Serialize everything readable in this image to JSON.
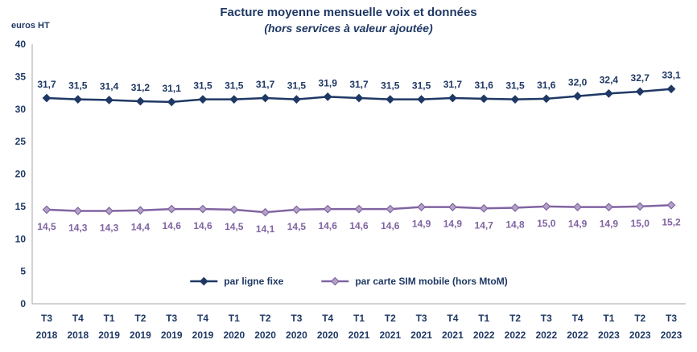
{
  "header": {
    "title": "Facture moyenne mensuelle voix et données",
    "subtitle": "(hors services à valeur ajoutée)"
  },
  "axis": {
    "y_unit_label": "euros HT"
  },
  "colors": {
    "navy": "#1F3864",
    "purple": "#8064A2",
    "purple_marker_fill": "#B3A2C7",
    "axis_line": "#A6A6A6"
  },
  "chart_data": {
    "type": "line",
    "title": "Facture moyenne mensuelle voix et données",
    "subtitle": "(hors services à valeur ajoutée)",
    "ylabel": "euros HT",
    "xlabel": "",
    "ylim": [
      0,
      40
    ],
    "ytick_step": 5,
    "grid": false,
    "legend_position": "bottom-center-inside",
    "categories": [
      [
        "T3",
        "2018"
      ],
      [
        "T4",
        "2018"
      ],
      [
        "T1",
        "2019"
      ],
      [
        "T2",
        "2019"
      ],
      [
        "T3",
        "2019"
      ],
      [
        "T4",
        "2019"
      ],
      [
        "T1",
        "2020"
      ],
      [
        "T2",
        "2020"
      ],
      [
        "T3",
        "2020"
      ],
      [
        "T4",
        "2020"
      ],
      [
        "T1",
        "2021"
      ],
      [
        "T2",
        "2021"
      ],
      [
        "T3",
        "2021"
      ],
      [
        "T4",
        "2021"
      ],
      [
        "T1",
        "2022"
      ],
      [
        "T2",
        "2022"
      ],
      [
        "T3",
        "2022"
      ],
      [
        "T4",
        "2022"
      ],
      [
        "T1",
        "2023"
      ],
      [
        "T2",
        "2023"
      ],
      [
        "T3",
        "2023"
      ]
    ],
    "series": [
      {
        "name": "par ligne fixe",
        "color": "#1F3864",
        "marker_fill": "#1F3864",
        "label_position": "above",
        "values": [
          31.7,
          31.5,
          31.4,
          31.2,
          31.1,
          31.5,
          31.5,
          31.7,
          31.5,
          31.9,
          31.7,
          31.5,
          31.5,
          31.7,
          31.6,
          31.5,
          31.6,
          32.0,
          32.4,
          32.7,
          33.1
        ]
      },
      {
        "name": "par carte SIM mobile (hors MtoM)",
        "color": "#8064A2",
        "marker_fill": "#B3A2C7",
        "label_position": "below",
        "values": [
          14.5,
          14.3,
          14.3,
          14.4,
          14.6,
          14.6,
          14.5,
          14.1,
          14.5,
          14.6,
          14.6,
          14.6,
          14.9,
          14.9,
          14.7,
          14.8,
          15.0,
          14.9,
          14.9,
          15.0,
          15.2
        ]
      }
    ],
    "value_decimal_separator": ","
  }
}
